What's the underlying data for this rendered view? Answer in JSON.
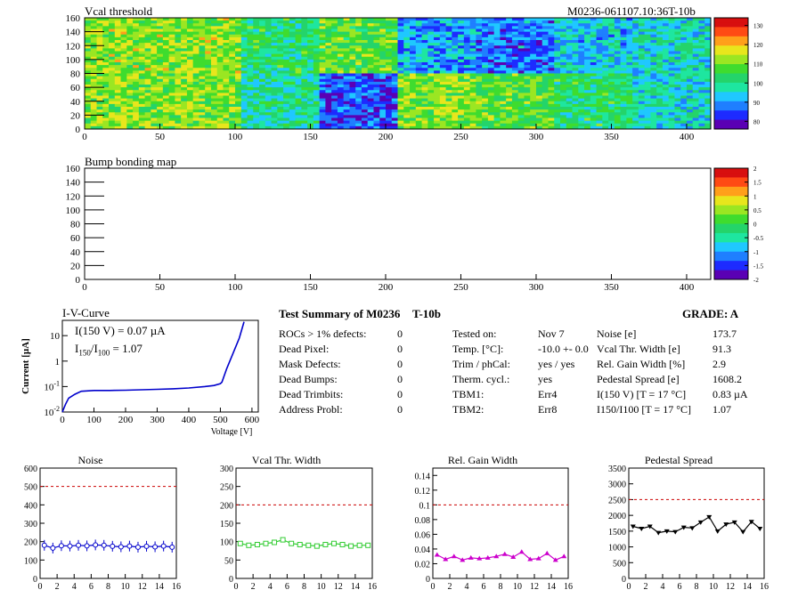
{
  "header": {
    "vcal_title": "Vcal threshold",
    "module_id": "M0236-061107.10:36T-10b",
    "bump_title": "Bump bonding map"
  },
  "maps": {
    "x_ticks": [
      "0",
      "50",
      "100",
      "150",
      "200",
      "250",
      "300",
      "350",
      "400"
    ],
    "x_tick_values": [
      0,
      50,
      100,
      150,
      200,
      250,
      300,
      350,
      400
    ],
    "x_range": [
      0,
      416
    ],
    "y_ticks": [
      "0",
      "20",
      "40",
      "60",
      "80",
      "100",
      "120",
      "140",
      "160"
    ],
    "y_tick_values": [
      0,
      20,
      40,
      60,
      80,
      100,
      120,
      140,
      160
    ],
    "y_range": [
      0,
      160
    ],
    "vcal_roc_levels": [
      [
        0.62,
        0.62,
        0.45,
        0.55,
        0.25,
        0.2,
        0.3,
        0.35
      ],
      [
        0.6,
        0.6,
        0.4,
        0.15,
        0.6,
        0.55,
        0.45,
        0.35
      ]
    ],
    "vcal_palette": {
      "labels": [
        "130",
        "120",
        "110",
        "100",
        "90",
        "80"
      ],
      "values": [
        130,
        120,
        110,
        100,
        90,
        80
      ],
      "range": [
        76,
        134
      ]
    },
    "bump_palette": {
      "labels": [
        "2",
        "1.5",
        "1",
        "0.5",
        "0",
        "-0.5",
        "-1",
        "-1.5",
        "-2"
      ],
      "values": [
        2,
        1.5,
        1,
        0.5,
        0,
        -0.5,
        -1,
        -1.5,
        -2
      ],
      "range": [
        -2,
        2
      ]
    }
  },
  "iv": {
    "title": "I-V-Curve",
    "line1": "I(150 V) = 0.07 µA",
    "line2_prefix": "I",
    "line2_sub1": "150",
    "line2_mid": "/I",
    "line2_sub2": "100",
    "line2_value": "=  1.07",
    "ylabel": "Current [µA]",
    "xlabel": "Voltage [V]",
    "x_ticks": [
      "0",
      "100",
      "200",
      "300",
      "400",
      "500",
      "600"
    ],
    "x_tick_values": [
      0,
      100,
      200,
      300,
      400,
      500,
      600
    ],
    "x_range": [
      0,
      620
    ],
    "y_ticks": [
      {
        "base": "10",
        "exp": "-2",
        "value": 0.01
      },
      {
        "base": "10",
        "exp": "-1",
        "value": 0.1
      },
      {
        "base": "1",
        "exp": "",
        "value": 1
      },
      {
        "base": "10",
        "exp": "",
        "value": 10
      }
    ],
    "y_log_range": [
      -2,
      1.6
    ],
    "points": [
      [
        0,
        0.01
      ],
      [
        10,
        0.02
      ],
      [
        20,
        0.035
      ],
      [
        40,
        0.05
      ],
      [
        60,
        0.065
      ],
      [
        100,
        0.07
      ],
      [
        150,
        0.07
      ],
      [
        200,
        0.072
      ],
      [
        250,
        0.075
      ],
      [
        300,
        0.078
      ],
      [
        350,
        0.082
      ],
      [
        400,
        0.088
      ],
      [
        450,
        0.1
      ],
      [
        480,
        0.11
      ],
      [
        500,
        0.13
      ],
      [
        505,
        0.15
      ],
      [
        520,
        0.5
      ],
      [
        540,
        2
      ],
      [
        560,
        8
      ],
      [
        575,
        35
      ]
    ]
  },
  "summary": {
    "title": "Test Summary of M0236",
    "subtitle": "T-10b",
    "grade": "GRADE:  A",
    "defects": [
      {
        "label": "ROCs > 1% defects:",
        "value": "0"
      },
      {
        "label": "Dead Pixel:",
        "value": "0"
      },
      {
        "label": "Mask Defects:",
        "value": "0"
      },
      {
        "label": "Dead Bumps:",
        "value": "0"
      },
      {
        "label": "Dead Trimbits:",
        "value": "0"
      },
      {
        "label": "Address Probl:",
        "value": "0"
      }
    ],
    "conditions": [
      {
        "label": "Tested on:",
        "value": "Nov 7"
      },
      {
        "label": "Temp. [°C]:",
        "value": "-10.0 +- 0.0"
      },
      {
        "label": "Trim / phCal:",
        "value": "yes / yes"
      },
      {
        "label": "Therm. cycl.:",
        "value": "yes"
      },
      {
        "label": "TBM1:",
        "value": "Err4"
      },
      {
        "label": "TBM2:",
        "value": "Err8"
      }
    ],
    "results": [
      {
        "label": "Noise [e]",
        "value": "173.7"
      },
      {
        "label": "Vcal Thr. Width [e]",
        "value": "91.3"
      },
      {
        "label": "Rel. Gain Width [%]",
        "value": "2.9"
      },
      {
        "label": "Pedestal Spread [e]",
        "value": "1608.2"
      },
      {
        "label": "I(150 V) [T = 17 °C]",
        "value": "0.83 µA"
      },
      {
        "label": "I150/I100  [T = 17 °C]",
        "value": "1.07"
      }
    ]
  },
  "chart_data": [
    {
      "type": "line",
      "title": "Noise",
      "x": [
        0,
        1,
        2,
        3,
        4,
        5,
        6,
        7,
        8,
        9,
        10,
        11,
        12,
        13,
        14,
        15
      ],
      "values": [
        180,
        165,
        178,
        176,
        180,
        177,
        182,
        180,
        175,
        172,
        176,
        170,
        175,
        172,
        176,
        170
      ],
      "ylim": [
        0,
        600
      ],
      "xlim": [
        0,
        16
      ],
      "y_ticks": [
        "0",
        "100",
        "200",
        "300",
        "400",
        "500",
        "600"
      ],
      "y_tick_values": [
        0,
        100,
        200,
        300,
        400,
        500,
        600
      ],
      "x_ticks": [
        "0",
        "2",
        "4",
        "6",
        "8",
        "10",
        "12",
        "14",
        "16"
      ],
      "x_tick_values": [
        0,
        2,
        4,
        6,
        8,
        10,
        12,
        14,
        16
      ],
      "threshold": 500,
      "color": "#0000cc",
      "marker": "circle-err"
    },
    {
      "type": "line",
      "title": "Vcal Thr. Width",
      "x": [
        0,
        1,
        2,
        3,
        4,
        5,
        6,
        7,
        8,
        9,
        10,
        11,
        12,
        13,
        14,
        15
      ],
      "values": [
        95,
        90,
        92,
        95,
        98,
        105,
        95,
        92,
        90,
        88,
        92,
        95,
        92,
        88,
        90,
        90
      ],
      "ylim": [
        0,
        300
      ],
      "xlim": [
        0,
        16
      ],
      "y_ticks": [
        "0",
        "50",
        "100",
        "150",
        "200",
        "250",
        "300"
      ],
      "y_tick_values": [
        0,
        50,
        100,
        150,
        200,
        250,
        300
      ],
      "x_ticks": [
        "0",
        "2",
        "4",
        "6",
        "8",
        "10",
        "12",
        "14",
        "16"
      ],
      "x_tick_values": [
        0,
        2,
        4,
        6,
        8,
        10,
        12,
        14,
        16
      ],
      "threshold": 200,
      "color": "#33cc33",
      "marker": "square"
    },
    {
      "type": "line",
      "title": "Rel. Gain Width",
      "x": [
        0,
        1,
        2,
        3,
        4,
        5,
        6,
        7,
        8,
        9,
        10,
        11,
        12,
        13,
        14,
        15
      ],
      "values": [
        0.032,
        0.026,
        0.03,
        0.025,
        0.028,
        0.027,
        0.028,
        0.03,
        0.033,
        0.029,
        0.036,
        0.026,
        0.027,
        0.034,
        0.025,
        0.03
      ],
      "ylim": [
        0,
        0.15
      ],
      "xlim": [
        0,
        16
      ],
      "y_ticks": [
        "0",
        "0.02",
        "0.04",
        "0.06",
        "0.08",
        "0.1",
        "0.12",
        "0.14"
      ],
      "y_tick_values": [
        0,
        0.02,
        0.04,
        0.06,
        0.08,
        0.1,
        0.12,
        0.14
      ],
      "x_ticks": [
        "0",
        "2",
        "4",
        "6",
        "8",
        "10",
        "12",
        "14",
        "16"
      ],
      "x_tick_values": [
        0,
        2,
        4,
        6,
        8,
        10,
        12,
        14,
        16
      ],
      "threshold": 0.1,
      "color": "#cc00cc",
      "marker": "triangle"
    },
    {
      "type": "line",
      "title": "Pedestal Spread",
      "x": [
        0,
        1,
        2,
        3,
        4,
        5,
        6,
        7,
        8,
        9,
        10,
        11,
        12,
        13,
        14,
        15
      ],
      "values": [
        1650,
        1580,
        1650,
        1450,
        1500,
        1480,
        1620,
        1600,
        1780,
        1950,
        1500,
        1720,
        1780,
        1480,
        1800,
        1580
      ],
      "ylim": [
        0,
        3500
      ],
      "xlim": [
        0,
        16
      ],
      "y_ticks": [
        "0",
        "500",
        "1000",
        "1500",
        "2000",
        "2500",
        "3000",
        "3500"
      ],
      "y_tick_values": [
        0,
        500,
        1000,
        1500,
        2000,
        2500,
        3000,
        3500
      ],
      "x_ticks": [
        "0",
        "2",
        "4",
        "6",
        "8",
        "10",
        "12",
        "14",
        "16"
      ],
      "x_tick_values": [
        0,
        2,
        4,
        6,
        8,
        10,
        12,
        14,
        16
      ],
      "threshold": 2500,
      "color": "#000000",
      "marker": "triangle-down"
    }
  ]
}
